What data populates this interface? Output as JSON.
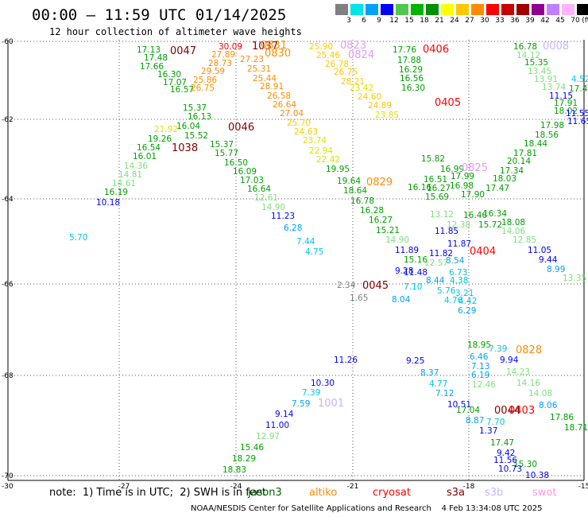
{
  "title": "00:00 – 11:59 UTC 01/14/2025",
  "subtitle": "12 hour collection of altimeter wave heights",
  "scale": {
    "unit": "(ft)",
    "colors": [
      "#808080",
      "#00e5e5",
      "#00a0ff",
      "#0000ff",
      "#50c850",
      "#00b400",
      "#009000",
      "#ffff00",
      "#ffc800",
      "#ff8c00",
      "#ff0000",
      "#c80000",
      "#a00000",
      "#900090",
      "#c080ff",
      "#ffb4ff",
      "#000000"
    ],
    "labels": [
      "3",
      "6",
      "9",
      "12",
      "15",
      "18",
      "21",
      "24",
      "27",
      "30",
      "33",
      "36",
      "39",
      "42",
      "45",
      "70"
    ]
  },
  "axes": {
    "x_ticks": [
      "-27",
      "-24",
      "-21",
      "-18",
      "-15"
    ],
    "y_ticks": [
      "-60",
      "-62",
      "-64",
      "-66",
      "-68",
      "-70"
    ],
    "corner_x": "-30"
  },
  "note": "note:  1) Time is in UTC;  2) SWH is in feet",
  "legend": [
    {
      "name": "jason3",
      "color": "#006400"
    },
    {
      "name": "altiko",
      "color": "#ff8c00"
    },
    {
      "name": "cryosat",
      "color": "#ff0000"
    },
    {
      "name": "s3a",
      "color": "#800000"
    },
    {
      "name": "s3b",
      "color": "#c8b4ff"
    },
    {
      "name": "swot",
      "color": "#ff96dc"
    }
  ],
  "footer": "NOAA/NESDIS Center for Satellite Applications and Research    4 Feb 13:34:08 UTC 2025",
  "passes": [
    {
      "time": "0047",
      "color": "#800000"
    },
    {
      "time": "1037",
      "color": "#800000"
    },
    {
      "time": "0046",
      "color": "#800000"
    },
    {
      "time": "1038",
      "color": "#800000"
    },
    {
      "time": "0045",
      "color": "#800000"
    },
    {
      "time": "0044",
      "color": "#800000"
    },
    {
      "time": "0831",
      "color": "#ff8c00"
    },
    {
      "time": "0830",
      "color": "#ff8c00"
    },
    {
      "time": "0829",
      "color": "#ff8c00"
    },
    {
      "time": "0828",
      "color": "#ff8c00"
    },
    {
      "time": "0823",
      "color": "#e696ff"
    },
    {
      "time": "0824",
      "color": "#e696ff"
    },
    {
      "time": "0825",
      "color": "#e696ff"
    },
    {
      "time": "0008",
      "color": "#c8b4ff"
    },
    {
      "time": "1001",
      "color": "#c8b4ff"
    },
    {
      "time": "0406",
      "color": "#ff0000"
    },
    {
      "time": "0405",
      "color": "#ff0000"
    },
    {
      "time": "0404",
      "color": "#ff0000"
    },
    {
      "time": "0403",
      "color": "#ff0000"
    }
  ],
  "observations": [
    {
      "swh": "17.13",
      "color": "#00a000"
    },
    {
      "swh": "17.48",
      "color": "#00a000"
    },
    {
      "swh": "17.66",
      "color": "#00a000"
    },
    {
      "swh": "16.30",
      "color": "#00a000"
    },
    {
      "swh": "17.07",
      "color": "#00a000"
    },
    {
      "swh": "16.57",
      "color": "#00a000"
    },
    {
      "swh": "15.37",
      "color": "#00a000"
    },
    {
      "swh": "16.13",
      "color": "#00a000"
    },
    {
      "swh": "16.04",
      "color": "#00a000"
    },
    {
      "swh": "15.52",
      "color": "#00a000"
    },
    {
      "swh": "15.37",
      "color": "#00a000"
    },
    {
      "swh": "15.77",
      "color": "#00a000"
    },
    {
      "swh": "16.50",
      "color": "#00a000"
    },
    {
      "swh": "16.09",
      "color": "#00a000"
    },
    {
      "swh": "17.03",
      "color": "#00a000"
    },
    {
      "swh": "16.64",
      "color": "#00a000"
    },
    {
      "swh": "12.61",
      "color": "#7ee07e"
    },
    {
      "swh": "14.90",
      "color": "#7ee07e"
    },
    {
      "swh": "11.23",
      "color": "#0000ff"
    },
    {
      "swh": "6.28",
      "color": "#00a0ff"
    },
    {
      "swh": "7.44",
      "color": "#00c8e0"
    },
    {
      "swh": "4.75",
      "color": "#00c8e0"
    },
    {
      "swh": "19.26",
      "color": "#00a000"
    },
    {
      "swh": "16.54",
      "color": "#00a000"
    },
    {
      "swh": "16.01",
      "color": "#00a000"
    },
    {
      "swh": "14.36",
      "color": "#7ee07e"
    },
    {
      "swh": "14.81",
      "color": "#7ee07e"
    },
    {
      "swh": "14.61",
      "color": "#7ee07e"
    },
    {
      "swh": "16.19",
      "color": "#00a000"
    },
    {
      "swh": "10.18",
      "color": "#0000ff"
    },
    {
      "swh": "5.70",
      "color": "#00c8e0"
    },
    {
      "swh": "21.92",
      "color": "#e0e000"
    },
    {
      "swh": "29.59",
      "color": "#ff8c00"
    },
    {
      "swh": "27.89",
      "color": "#ff8c00"
    },
    {
      "swh": "28.73",
      "color": "#ff8c00"
    },
    {
      "swh": "25.86",
      "color": "#ff8c00"
    },
    {
      "swh": "26.75",
      "color": "#ff8c00"
    },
    {
      "swh": "27.23",
      "color": "#ff8c00"
    },
    {
      "swh": "25.31",
      "color": "#ff8c00"
    },
    {
      "swh": "25.44",
      "color": "#ff8c00"
    },
    {
      "swh": "28.91",
      "color": "#ff8c00"
    },
    {
      "swh": "26.58",
      "color": "#ff8c00"
    },
    {
      "swh": "26.64",
      "color": "#ff8c00"
    },
    {
      "swh": "27.04",
      "color": "#ff8c00"
    },
    {
      "swh": "25.70",
      "color": "#ffc800"
    },
    {
      "swh": "24.63",
      "color": "#ffc800"
    },
    {
      "swh": "23.74",
      "color": "#e0e000"
    },
    {
      "swh": "22.94",
      "color": "#e0e000"
    },
    {
      "swh": "22.42",
      "color": "#e0e000"
    },
    {
      "swh": "19.95",
      "color": "#00a000"
    },
    {
      "swh": "30.09",
      "color": "#ff0000"
    },
    {
      "swh": "25.90",
      "color": "#ffc800"
    },
    {
      "swh": "25.46",
      "color": "#ffc800"
    },
    {
      "swh": "26.78",
      "color": "#ffc800"
    },
    {
      "swh": "26.75",
      "color": "#ffc800"
    },
    {
      "swh": "28.21",
      "color": "#ffc800"
    },
    {
      "swh": "23.42",
      "color": "#e0e000"
    },
    {
      "swh": "24.60",
      "color": "#ffc800"
    },
    {
      "swh": "24.89",
      "color": "#ffc800"
    },
    {
      "swh": "23.85",
      "color": "#e0e000"
    },
    {
      "swh": "19.64",
      "color": "#00a000"
    },
    {
      "swh": "18.64",
      "color": "#00a000"
    },
    {
      "swh": "16.78",
      "color": "#00a000"
    },
    {
      "swh": "16.28",
      "color": "#00a000"
    },
    {
      "swh": "16.27",
      "color": "#00a000"
    },
    {
      "swh": "15.21",
      "color": "#00a000"
    },
    {
      "swh": "14.90",
      "color": "#7ee07e"
    },
    {
      "swh": "11.89",
      "color": "#0000ff"
    },
    {
      "swh": "15.16",
      "color": "#00a000"
    },
    {
      "swh": "9.28",
      "color": "#0000ff"
    },
    {
      "swh": "11.48",
      "color": "#0000ff"
    },
    {
      "swh": "7.10",
      "color": "#00c8e0"
    },
    {
      "swh": "8.04",
      "color": "#00a0ff"
    },
    {
      "swh": "8.44",
      "color": "#00a0ff"
    },
    {
      "swh": "5.76",
      "color": "#00c8e0"
    },
    {
      "swh": "4.76",
      "color": "#00c8e0"
    },
    {
      "swh": "2.34",
      "color": "#808080"
    },
    {
      "swh": "1.65",
      "color": "#808080"
    },
    {
      "swh": "17.76",
      "color": "#00a000"
    },
    {
      "swh": "17.88",
      "color": "#00a000"
    },
    {
      "swh": "16.29",
      "color": "#00a000"
    },
    {
      "swh": "16.56",
      "color": "#00a000"
    },
    {
      "swh": "16.30",
      "color": "#00a000"
    },
    {
      "swh": "16.16",
      "color": "#00a000"
    },
    {
      "swh": "15.82",
      "color": "#00a000"
    },
    {
      "swh": "16.99",
      "color": "#00a000"
    },
    {
      "swh": "17.99",
      "color": "#00a000"
    },
    {
      "swh": "16.98",
      "color": "#00a000"
    },
    {
      "swh": "17.90",
      "color": "#00a000"
    },
    {
      "swh": "16.51",
      "color": "#00a000"
    },
    {
      "swh": "16.27",
      "color": "#00a000"
    },
    {
      "swh": "15.69",
      "color": "#00a000"
    },
    {
      "swh": "13.12",
      "color": "#7ee07e"
    },
    {
      "swh": "12.38",
      "color": "#7ee07e"
    },
    {
      "swh": "11.85",
      "color": "#0000ff"
    },
    {
      "swh": "11.87",
      "color": "#0000ff"
    },
    {
      "swh": "11.82",
      "color": "#0000ff"
    },
    {
      "swh": "8.54",
      "color": "#00a0ff"
    },
    {
      "swh": "6.73",
      "color": "#00c8e0"
    },
    {
      "swh": "4.38",
      "color": "#00c8e0"
    },
    {
      "swh": "3.21",
      "color": "#00c8e0"
    },
    {
      "swh": "4.42",
      "color": "#00c8e0"
    },
    {
      "swh": "6.29",
      "color": "#00a0ff"
    },
    {
      "swh": "16.46",
      "color": "#00a000"
    },
    {
      "swh": "16.34",
      "color": "#00a000"
    },
    {
      "swh": "15.72",
      "color": "#00a000"
    },
    {
      "swh": "12.57",
      "color": "#7ee07e"
    },
    {
      "swh": "16.78",
      "color": "#00a000"
    },
    {
      "swh": "14.12",
      "color": "#7ee07e"
    },
    {
      "swh": "15.35",
      "color": "#00a000"
    },
    {
      "swh": "13.45",
      "color": "#7ee07e"
    },
    {
      "swh": "13.91",
      "color": "#7ee07e"
    },
    {
      "swh": "13.74",
      "color": "#7ee07e"
    },
    {
      "swh": "11.15",
      "color": "#0000ff"
    },
    {
      "swh": "17.91",
      "color": "#00a000"
    },
    {
      "swh": "18.02",
      "color": "#00a000"
    },
    {
      "swh": "17.98",
      "color": "#00a000"
    },
    {
      "swh": "18.56",
      "color": "#00a000"
    },
    {
      "swh": "18.44",
      "color": "#00a000"
    },
    {
      "swh": "17.81",
      "color": "#00a000"
    },
    {
      "swh": "20.14",
      "color": "#00a000"
    },
    {
      "swh": "17.34",
      "color": "#00a000"
    },
    {
      "swh": "18.03",
      "color": "#00a000"
    },
    {
      "swh": "17.47",
      "color": "#00a000"
    },
    {
      "swh": "18.08",
      "color": "#00a000"
    },
    {
      "swh": "14.06",
      "color": "#7ee07e"
    },
    {
      "swh": "12.85",
      "color": "#7ee07e"
    },
    {
      "swh": "11.05",
      "color": "#0000ff"
    },
    {
      "swh": "9.44",
      "color": "#0000ff"
    },
    {
      "swh": "8.99",
      "color": "#00a0ff"
    },
    {
      "swh": "13.35",
      "color": "#7ee07e"
    },
    {
      "swh": "4.52",
      "color": "#00c8e0"
    },
    {
      "swh": "17.40",
      "color": "#00a000"
    },
    {
      "swh": "11.55",
      "color": "#0000ff"
    },
    {
      "swh": "11.65",
      "color": "#0000ff"
    },
    {
      "swh": "11.26",
      "color": "#0000ff"
    },
    {
      "swh": "9.25",
      "color": "#0000ff"
    },
    {
      "swh": "8.37",
      "color": "#00a0ff"
    },
    {
      "swh": "4.77",
      "color": "#00c8e0"
    },
    {
      "swh": "7.12",
      "color": "#00a0ff"
    },
    {
      "swh": "10.51",
      "color": "#0000ff"
    },
    {
      "swh": "10.30",
      "color": "#0000ff"
    },
    {
      "swh": "7.39",
      "color": "#00c8e0"
    },
    {
      "swh": "7.59",
      "color": "#00a0ff"
    },
    {
      "swh": "9.14",
      "color": "#0000ff"
    },
    {
      "swh": "11.00",
      "color": "#0000ff"
    },
    {
      "swh": "12.97",
      "color": "#7ee07e"
    },
    {
      "swh": "15.46",
      "color": "#00a000"
    },
    {
      "swh": "18.29",
      "color": "#00a000"
    },
    {
      "swh": "18.83",
      "color": "#00a000"
    },
    {
      "swh": "18.95",
      "color": "#00a000"
    },
    {
      "swh": "7.39",
      "color": "#00c8e0"
    },
    {
      "swh": "6.46",
      "color": "#00a0ff"
    },
    {
      "swh": "7.13",
      "color": "#00a0ff"
    },
    {
      "swh": "9.94",
      "color": "#0000ff"
    },
    {
      "swh": "6.19",
      "color": "#00a0ff"
    },
    {
      "swh": "14.23",
      "color": "#7ee07e"
    },
    {
      "swh": "12.46",
      "color": "#7ee07e"
    },
    {
      "swh": "14.16",
      "color": "#7ee07e"
    },
    {
      "swh": "14.08",
      "color": "#7ee07e"
    },
    {
      "swh": "17.04",
      "color": "#00a000"
    },
    {
      "swh": "8.87",
      "color": "#00a0ff"
    },
    {
      "swh": "7.70",
      "color": "#00c8e0"
    },
    {
      "swh": "1.37",
      "color": "#0000ff"
    },
    {
      "swh": "8.06",
      "color": "#00a0ff"
    },
    {
      "swh": "17.86",
      "color": "#00a000"
    },
    {
      "swh": "18.71",
      "color": "#00a000"
    },
    {
      "swh": "17.47",
      "color": "#00a000"
    },
    {
      "swh": "9.42",
      "color": "#0000ff"
    },
    {
      "swh": "11.56",
      "color": "#0000ff"
    },
    {
      "swh": "15.30",
      "color": "#00a000"
    },
    {
      "swh": "10.38",
      "color": "#0000ff"
    },
    {
      "swh": "10.73",
      "color": "#0000ff"
    },
    {
      "swh": "14.61",
      "color": "#7ee07e"
    }
  ]
}
